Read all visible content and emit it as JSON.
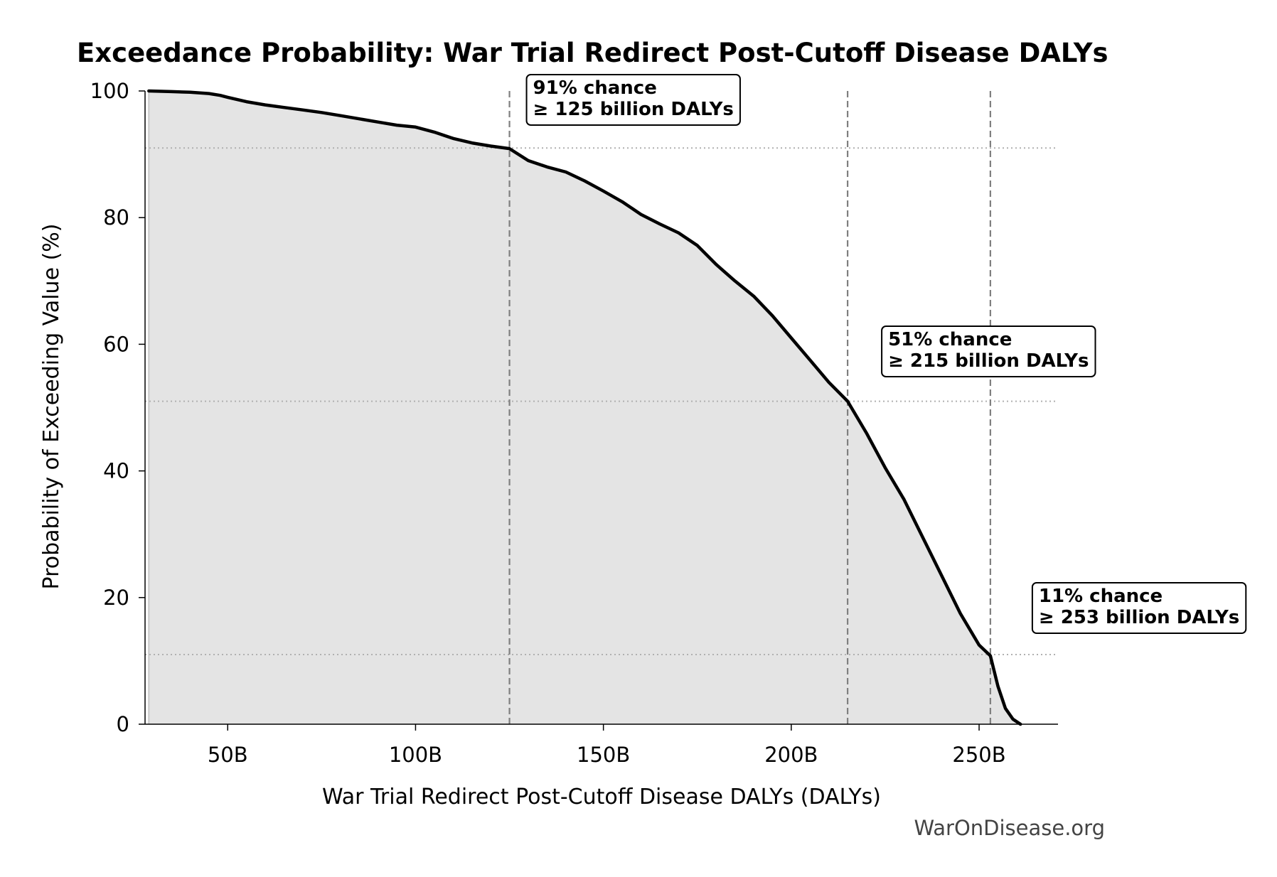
{
  "chart_data": {
    "type": "area",
    "title": "Exceedance Probability: War Trial Redirect Post-Cutoff Disease DALYs",
    "xlabel": "War Trial Redirect Post-Cutoff Disease DALYs (DALYs)",
    "ylabel": "Probability of Exceeding Value (%)",
    "xlim": [
      28,
      271
    ],
    "ylim": [
      0,
      100
    ],
    "x_unit": "billion DALYs",
    "x_ticks": [
      {
        "value": 50,
        "label": "50B"
      },
      {
        "value": 100,
        "label": "100B"
      },
      {
        "value": 150,
        "label": "150B"
      },
      {
        "value": 200,
        "label": "200B"
      },
      {
        "value": 250,
        "label": "250B"
      }
    ],
    "y_ticks": [
      {
        "value": 0,
        "label": "0"
      },
      {
        "value": 20,
        "label": "20"
      },
      {
        "value": 40,
        "label": "40"
      },
      {
        "value": 60,
        "label": "60"
      },
      {
        "value": 80,
        "label": "80"
      },
      {
        "value": 100,
        "label": "100"
      }
    ],
    "series": [
      {
        "x": [
          29,
          35,
          40,
          45,
          48,
          50,
          55,
          60,
          65,
          70,
          75,
          80,
          85,
          90,
          95,
          100,
          105,
          110,
          115,
          120,
          125,
          130,
          135,
          140,
          145,
          150,
          155,
          160,
          165,
          170,
          175,
          180,
          185,
          190,
          195,
          200,
          205,
          210,
          215,
          220,
          225,
          230,
          235,
          240,
          245,
          250,
          253,
          255,
          257,
          259,
          261
        ],
        "y": [
          100,
          99.9,
          99.8,
          99.6,
          99.3,
          99.0,
          98.3,
          97.8,
          97.4,
          97.0,
          96.6,
          96.1,
          95.6,
          95.1,
          94.6,
          94.3,
          93.5,
          92.5,
          91.8,
          91.3,
          90.9,
          89.0,
          88.0,
          87.2,
          85.8,
          84.2,
          82.5,
          80.5,
          79.0,
          77.6,
          75.6,
          72.6,
          70.0,
          67.6,
          64.5,
          61.0,
          57.5,
          54.0,
          51.0,
          46.0,
          40.5,
          35.5,
          29.5,
          23.5,
          17.5,
          12.5,
          10.8,
          6.0,
          2.5,
          0.8,
          0
        ]
      }
    ],
    "markers": [
      {
        "x": 125,
        "p": 91,
        "text_line1": "91% chance",
        "text_line2": "≥ 125 billion DALYs"
      },
      {
        "x": 215,
        "p": 51,
        "text_line1": "51% chance",
        "text_line2": "≥ 215 billion DALYs"
      },
      {
        "x": 253,
        "p": 11,
        "text_line1": "11% chance",
        "text_line2": "≥ 253 billion DALYs"
      }
    ],
    "grid": false,
    "legend": "none",
    "colors": {
      "line": "#000000",
      "fill": "#e4e4e4",
      "vline": "#7f7f7f",
      "hline": "#b0b0b0"
    }
  },
  "watermark": "WarOnDisease.org"
}
